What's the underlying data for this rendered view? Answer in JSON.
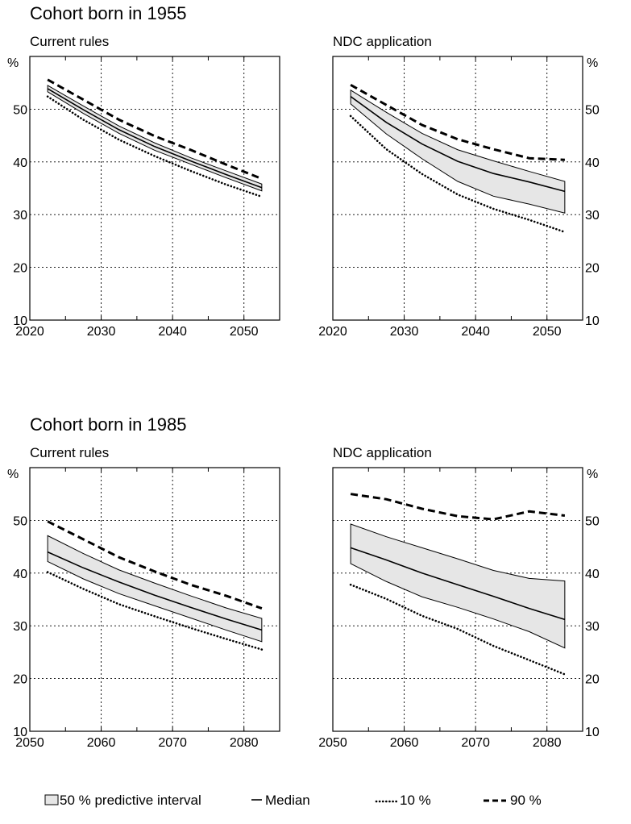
{
  "sections": [
    {
      "title": "Cohort born in 1955",
      "panels": [
        {
          "title": "Current rules",
          "y_unit": "%",
          "y_ticks": [
            "10",
            "20",
            "30",
            "40",
            "50"
          ],
          "x_ticks": [
            "2020",
            "2030",
            "2040",
            "2050"
          ]
        },
        {
          "title": "NDC application",
          "y_unit": "%",
          "y_ticks": [
            "10",
            "20",
            "30",
            "40",
            "50"
          ],
          "x_ticks": [
            "2020",
            "2030",
            "2040",
            "2050"
          ]
        }
      ]
    },
    {
      "title": "Cohort born in 1985",
      "panels": [
        {
          "title": "Current rules",
          "y_unit": "%",
          "y_ticks": [
            "10",
            "20",
            "30",
            "40",
            "50"
          ],
          "x_ticks": [
            "2050",
            "2060",
            "2070",
            "2080"
          ]
        },
        {
          "title": "NDC application",
          "y_unit": "%",
          "y_ticks": [
            "10",
            "20",
            "30",
            "40",
            "50"
          ],
          "x_ticks": [
            "2050",
            "2060",
            "2070",
            "2080"
          ]
        }
      ]
    }
  ],
  "legend": [
    {
      "key": "band",
      "label": "50 % predictive interval"
    },
    {
      "key": "median",
      "label": "Median"
    },
    {
      "key": "p10",
      "label": "10 %"
    },
    {
      "key": "p90",
      "label": "90 %"
    }
  ],
  "colors": {
    "band_fill": "#e6e6e6",
    "line": "#000000",
    "grid": "#000000"
  },
  "chart_data": [
    {
      "type": "line",
      "title": "Current rules",
      "xlim": [
        2020,
        2055
      ],
      "ylim": [
        10,
        60
      ],
      "x": [
        2022.5,
        2027.5,
        2032.5,
        2037.5,
        2042.5,
        2047.5,
        2052.5
      ],
      "series": [
        {
          "name": "90 %",
          "values": [
            55.6,
            51.8,
            48.0,
            44.9,
            42.3,
            39.5,
            36.8
          ]
        },
        {
          "name": "50 % predictive interval",
          "upper": [
            54.5,
            50.6,
            46.8,
            43.6,
            40.8,
            38.3,
            35.8
          ],
          "lower": [
            53.3,
            49.2,
            45.4,
            42.2,
            39.6,
            37.0,
            34.5
          ]
        },
        {
          "name": "Median",
          "values": [
            53.9,
            49.9,
            46.1,
            42.9,
            40.2,
            37.6,
            35.1
          ]
        },
        {
          "name": "10 %",
          "values": [
            52.4,
            48.0,
            44.2,
            41.1,
            38.3,
            35.7,
            33.4
          ]
        }
      ]
    },
    {
      "type": "line",
      "title": "NDC application",
      "xlim": [
        2020,
        2055
      ],
      "ylim": [
        10,
        60
      ],
      "x": [
        2022.5,
        2027.5,
        2032.5,
        2037.5,
        2042.5,
        2047.5,
        2052.5
      ],
      "series": [
        {
          "name": "90 %",
          "values": [
            54.6,
            50.8,
            47.0,
            44.3,
            42.4,
            40.7,
            40.4
          ]
        },
        {
          "name": "50 % predictive interval",
          "upper": [
            53.6,
            49.4,
            45.4,
            42.3,
            40.2,
            38.2,
            36.3
          ],
          "lower": [
            51.0,
            45.3,
            40.6,
            36.3,
            33.5,
            32.0,
            30.3
          ]
        },
        {
          "name": "Median",
          "values": [
            52.4,
            47.5,
            43.4,
            40.1,
            37.8,
            36.2,
            34.4
          ]
        },
        {
          "name": "10 %",
          "values": [
            48.7,
            42.4,
            37.7,
            33.8,
            31.1,
            29.0,
            26.7
          ]
        }
      ]
    },
    {
      "type": "line",
      "title": "Current rules",
      "xlim": [
        2050,
        2085
      ],
      "ylim": [
        10,
        60
      ],
      "x": [
        2052.5,
        2057.5,
        2062.5,
        2067.5,
        2072.5,
        2077.5,
        2082.5
      ],
      "series": [
        {
          "name": "90 %",
          "values": [
            49.8,
            46.4,
            43.0,
            40.3,
            37.8,
            35.7,
            33.3
          ]
        },
        {
          "name": "50 % predictive interval",
          "upper": [
            47.1,
            43.7,
            40.6,
            38.1,
            35.7,
            33.4,
            31.4
          ],
          "lower": [
            42.2,
            38.9,
            36.1,
            33.8,
            31.5,
            29.2,
            27.0
          ]
        },
        {
          "name": "Median",
          "values": [
            44.0,
            41.0,
            38.3,
            35.8,
            33.5,
            31.3,
            29.2
          ]
        },
        {
          "name": "10 %",
          "values": [
            40.2,
            37.0,
            34.1,
            31.8,
            29.6,
            27.5,
            25.5
          ]
        }
      ]
    },
    {
      "type": "line",
      "title": "NDC application",
      "xlim": [
        2050,
        2085
      ],
      "ylim": [
        10,
        60
      ],
      "x": [
        2052.5,
        2057.5,
        2062.5,
        2067.5,
        2072.5,
        2077.5,
        2082.5
      ],
      "series": [
        {
          "name": "90 %",
          "values": [
            55.0,
            54.0,
            52.2,
            50.8,
            50.2,
            51.7,
            50.9
          ]
        },
        {
          "name": "50 % predictive interval",
          "upper": [
            49.3,
            46.9,
            44.8,
            42.7,
            40.5,
            39.0,
            38.5
          ],
          "lower": [
            41.8,
            38.4,
            35.5,
            33.5,
            31.3,
            28.9,
            25.8
          ]
        },
        {
          "name": "Median",
          "values": [
            44.8,
            42.5,
            40.0,
            37.8,
            35.6,
            33.3,
            31.2
          ]
        },
        {
          "name": "10 %",
          "values": [
            37.8,
            35.1,
            31.9,
            29.4,
            26.2,
            23.5,
            20.8
          ]
        }
      ]
    }
  ]
}
